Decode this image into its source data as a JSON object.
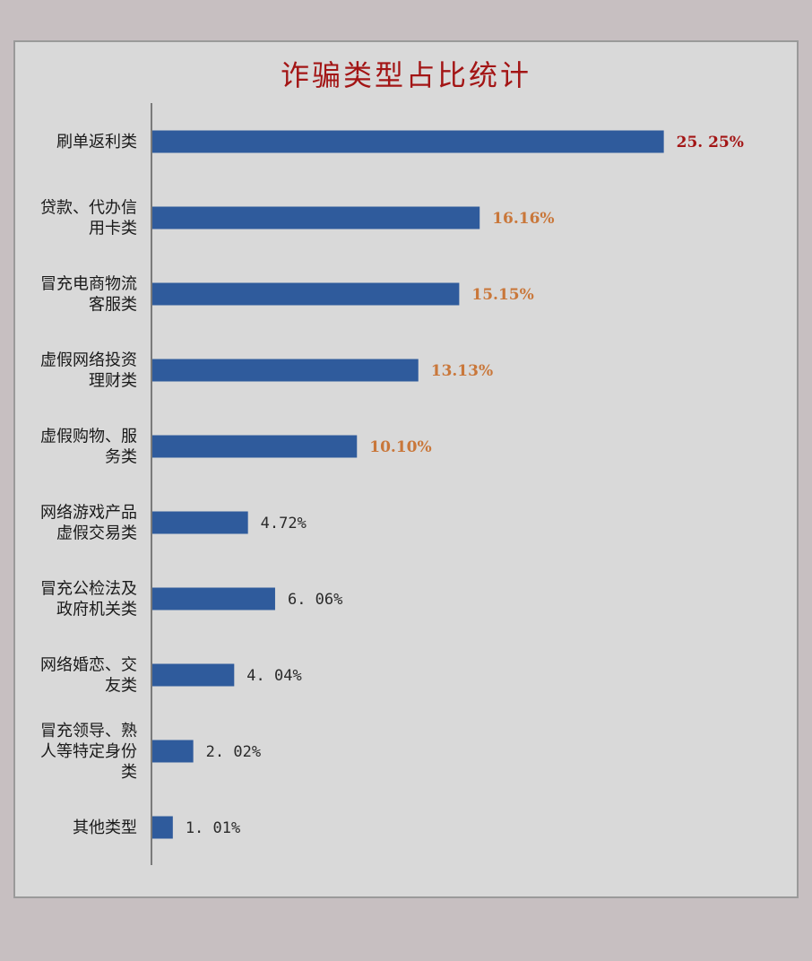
{
  "chart_data": {
    "type": "bar",
    "orientation": "horizontal",
    "title": "诈骗类型占比统计",
    "categories": [
      [
        "刷单返利类"
      ],
      [
        "贷款、代办信",
        "用卡类"
      ],
      [
        "冒充电商物流",
        "客服类"
      ],
      [
        "虚假网络投资",
        "理财类"
      ],
      [
        "虚假购物、服",
        "务类"
      ],
      [
        "网络游戏产品",
        "虚假交易类"
      ],
      [
        "冒充公检法及",
        "政府机关类"
      ],
      [
        "网络婚恋、交",
        "友类"
      ],
      [
        "冒充领导、熟",
        "人等特定身份",
        "类"
      ],
      [
        "其他类型"
      ]
    ],
    "values": [
      25.25,
      16.16,
      15.15,
      13.13,
      10.1,
      4.72,
      6.06,
      4.04,
      2.02,
      1.01
    ],
    "value_labels": [
      "25. 25%",
      "16.16%",
      "15.15%",
      "13.13%",
      "10.10%",
      "4.72%",
      "6. 06%",
      "4. 04%",
      "2. 02%",
      "1. 01%"
    ],
    "value_label_colors": [
      "#a31515",
      "#c9773a",
      "#c9773a",
      "#c9773a",
      "#c9773a",
      "#2a2a2a",
      "#2a2a2a",
      "#2a2a2a",
      "#2a2a2a",
      "#2a2a2a"
    ],
    "bar_color": "#2f5b9c",
    "background": "#d9d9d9",
    "title_color": "#a31515",
    "xlim": [
      0,
      30
    ],
    "grid": false,
    "legend": "none"
  }
}
